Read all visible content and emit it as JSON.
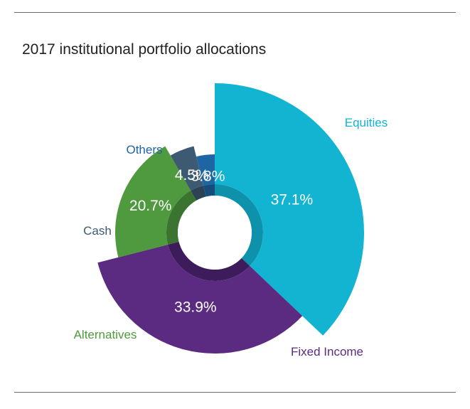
{
  "chart_data": {
    "type": "pie",
    "title": "2017 institutional portfolio allocations",
    "slices": [
      {
        "name": "Equities",
        "value": 37.1,
        "label": "37.1%",
        "color": "#12b4d2",
        "shadow": "#0e91ab"
      },
      {
        "name": "Fixed Income",
        "value": 33.9,
        "label": "33.9%",
        "color": "#5b2b82",
        "shadow": "#3e1c5c"
      },
      {
        "name": "Alternatives",
        "value": 20.7,
        "label": "20.7%",
        "color": "#4f9a3e",
        "shadow": "#3a7430"
      },
      {
        "name": "Cash",
        "value": 4.5,
        "label": "4.5%",
        "color": "#3d5a72",
        "shadow": "#2c4356"
      },
      {
        "name": "Others",
        "value": 3.8,
        "label": "3.8%",
        "color": "#1e65a4",
        "shadow": "#164c7c"
      }
    ]
  }
}
